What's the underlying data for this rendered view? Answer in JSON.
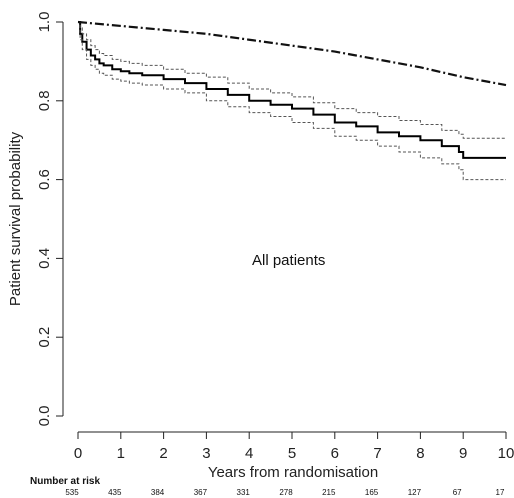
{
  "chart_data": {
    "type": "line",
    "xlabel": "Years from randomisation",
    "ylabel": "Patient survival probability",
    "xlim": [
      0,
      10
    ],
    "ylim": [
      0,
      1
    ],
    "x_ticks": [
      "0",
      "1",
      "2",
      "3",
      "4",
      "5",
      "6",
      "7",
      "8",
      "9",
      "10"
    ],
    "y_ticks": [
      "0.0",
      "0.2",
      "0.4",
      "0.6",
      "0.8",
      "1.0"
    ],
    "annotation": "All patients",
    "grid": false,
    "series": [
      {
        "style": "solid",
        "color": "#000000",
        "x": [
          0,
          0.05,
          0.1,
          0.2,
          0.3,
          0.4,
          0.5,
          0.6,
          0.8,
          1.0,
          1.2,
          1.5,
          2.0,
          2.5,
          3.0,
          3.5,
          4.0,
          4.5,
          5.0,
          5.5,
          6.0,
          6.5,
          7.0,
          7.5,
          8.0,
          8.5,
          8.9,
          9.0,
          10.0
        ],
        "y": [
          1.0,
          0.97,
          0.95,
          0.93,
          0.915,
          0.905,
          0.895,
          0.89,
          0.88,
          0.875,
          0.87,
          0.865,
          0.855,
          0.845,
          0.83,
          0.815,
          0.8,
          0.79,
          0.78,
          0.765,
          0.745,
          0.735,
          0.72,
          0.71,
          0.7,
          0.685,
          0.67,
          0.655,
          0.655
        ]
      },
      {
        "style": "dotted",
        "color": "#555555",
        "x": [
          0,
          0.05,
          0.1,
          0.2,
          0.3,
          0.4,
          0.5,
          0.6,
          0.8,
          1.0,
          1.2,
          1.5,
          2.0,
          2.5,
          3.0,
          3.5,
          4.0,
          4.5,
          5.0,
          5.5,
          6.0,
          6.5,
          7.0,
          7.5,
          8.0,
          8.5,
          8.9,
          9.0,
          10.0
        ],
        "y": [
          1.0,
          0.985,
          0.97,
          0.955,
          0.94,
          0.93,
          0.92,
          0.915,
          0.905,
          0.9,
          0.895,
          0.89,
          0.88,
          0.87,
          0.86,
          0.845,
          0.83,
          0.82,
          0.81,
          0.795,
          0.78,
          0.77,
          0.76,
          0.75,
          0.74,
          0.725,
          0.715,
          0.705,
          0.705
        ]
      },
      {
        "style": "dotted",
        "color": "#555555",
        "x": [
          0,
          0.05,
          0.1,
          0.2,
          0.3,
          0.4,
          0.5,
          0.6,
          0.8,
          1.0,
          1.2,
          1.5,
          2.0,
          2.5,
          3.0,
          3.5,
          4.0,
          4.5,
          5.0,
          5.5,
          6.0,
          6.5,
          7.0,
          7.5,
          8.0,
          8.5,
          8.9,
          9.0,
          10.0
        ],
        "y": [
          1.0,
          0.955,
          0.93,
          0.905,
          0.89,
          0.88,
          0.87,
          0.865,
          0.855,
          0.85,
          0.845,
          0.84,
          0.83,
          0.82,
          0.8,
          0.785,
          0.77,
          0.76,
          0.745,
          0.73,
          0.71,
          0.7,
          0.685,
          0.67,
          0.655,
          0.64,
          0.625,
          0.6,
          0.6
        ]
      },
      {
        "style": "dash-dot",
        "color": "#111111",
        "x": [
          0,
          1,
          2,
          3,
          4,
          5,
          6,
          7,
          8,
          9,
          10
        ],
        "y": [
          1.0,
          0.99,
          0.98,
          0.97,
          0.955,
          0.94,
          0.925,
          0.905,
          0.885,
          0.86,
          0.84
        ]
      }
    ],
    "number_at_risk": {
      "label": "Number at risk",
      "x": [
        0,
        1,
        2,
        3,
        4,
        5,
        6,
        7,
        8,
        9,
        10
      ],
      "values": [
        "535",
        "435",
        "384",
        "367",
        "331",
        "278",
        "215",
        "165",
        "127",
        "67",
        "17"
      ]
    }
  }
}
